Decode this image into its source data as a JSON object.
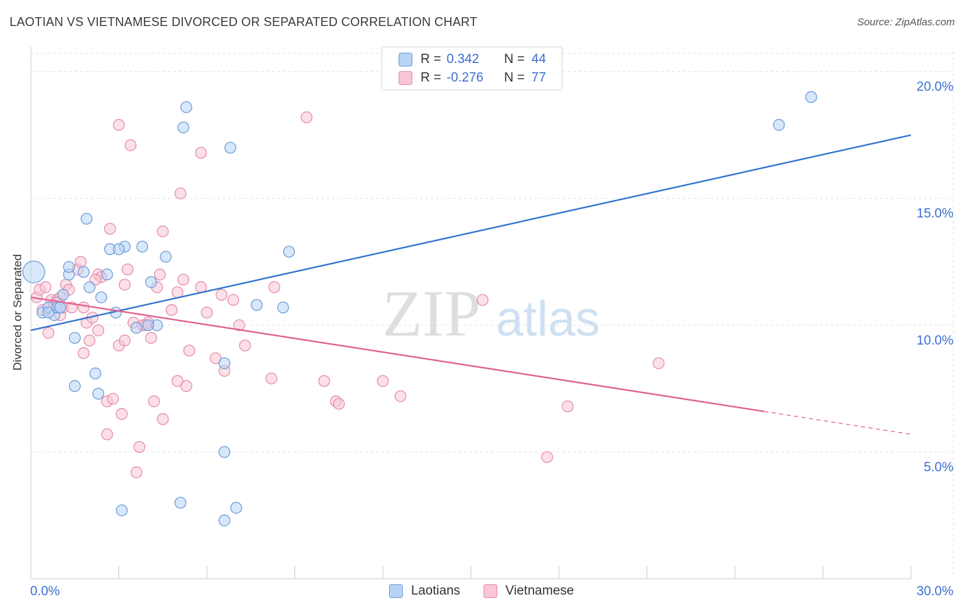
{
  "header": {
    "title": "LAOTIAN VS VIETNAMESE DIVORCED OR SEPARATED CORRELATION CHART",
    "source": "Source: ZipAtlas.com"
  },
  "legend": {
    "rows": [
      {
        "r_label": "R =",
        "r_value": "0.342",
        "n_label": "N =",
        "n_value": "44"
      },
      {
        "r_label": "R =",
        "r_value": "-0.276",
        "n_label": "N =",
        "n_value": "77"
      }
    ]
  },
  "bottom_legend": {
    "items": [
      {
        "label": "Laotians"
      },
      {
        "label": "Vietnamese"
      }
    ]
  },
  "colors": {
    "laotian_fill": "#b8d3f5",
    "laotian_stroke": "#6a9bd8",
    "laotian_line": "#2f73cf",
    "vietnamese_fill": "#f8c6d6",
    "vietnamese_stroke": "#e58aa8",
    "vietnamese_line": "#e0608e",
    "axis_text": "#3a6fd0",
    "grid": "#e2e2e2"
  },
  "watermark": {
    "zip": "ZIP",
    "atlas": "atlas"
  },
  "chart_data": {
    "type": "scatter",
    "title": "LAOTIAN VS VIETNAMESE DIVORCED OR SEPARATED CORRELATION CHART",
    "xlabel": "",
    "ylabel": "Divorced or Separated",
    "xlim": [
      0,
      30
    ],
    "ylim": [
      0,
      20.8
    ],
    "x_tick_labels": [
      {
        "value": 0,
        "label": "0.0%"
      },
      {
        "value": 30,
        "label": "30.0%"
      }
    ],
    "y_tick_labels": [
      {
        "value": 5,
        "label": "5.0%"
      },
      {
        "value": 10,
        "label": "10.0%"
      },
      {
        "value": 15,
        "label": "15.0%"
      },
      {
        "value": 20,
        "label": "20.0%"
      }
    ],
    "grid": true,
    "legend_position": "top-center",
    "series": [
      {
        "name": "Laotians",
        "r": 0.342,
        "n": 44,
        "trend": {
          "x": [
            0,
            30
          ],
          "y": [
            9.8,
            17.5
          ],
          "dashed_from": null
        },
        "points": [
          [
            0.1,
            12.1
          ],
          [
            0.4,
            10.5
          ],
          [
            0.6,
            10.7
          ],
          [
            0.8,
            10.4
          ],
          [
            0.9,
            10.7
          ],
          [
            1.0,
            10.7
          ],
          [
            1.1,
            11.2
          ],
          [
            1.3,
            12.0
          ],
          [
            1.3,
            12.3
          ],
          [
            1.5,
            9.5
          ],
          [
            1.8,
            12.1
          ],
          [
            1.9,
            14.2
          ],
          [
            2.0,
            11.5
          ],
          [
            2.2,
            8.1
          ],
          [
            2.3,
            7.3
          ],
          [
            2.4,
            11.1
          ],
          [
            2.6,
            12.0
          ],
          [
            2.7,
            13.0
          ],
          [
            2.9,
            10.5
          ],
          [
            3.1,
            2.7
          ],
          [
            3.2,
            13.1
          ],
          [
            3.6,
            9.9
          ],
          [
            3.8,
            13.1
          ],
          [
            4.1,
            11.7
          ],
          [
            4.3,
            10.0
          ],
          [
            4.6,
            12.7
          ],
          [
            5.1,
            3.0
          ],
          [
            5.2,
            17.8
          ],
          [
            5.3,
            18.6
          ],
          [
            6.6,
            8.5
          ],
          [
            6.6,
            5.0
          ],
          [
            6.6,
            2.3
          ],
          [
            6.8,
            17.0
          ],
          [
            7.0,
            2.8
          ],
          [
            7.7,
            10.8
          ],
          [
            8.6,
            10.7
          ],
          [
            8.8,
            12.9
          ],
          [
            25.5,
            17.9
          ],
          [
            26.6,
            19.0
          ],
          [
            1.5,
            7.6
          ],
          [
            0.6,
            10.5
          ],
          [
            3.0,
            13.0
          ],
          [
            4.0,
            10.0
          ],
          [
            1.0,
            10.7
          ]
        ]
      },
      {
        "name": "Vietnamese",
        "r": -0.276,
        "n": 77,
        "trend": {
          "x": [
            0,
            30
          ],
          "y": [
            11.1,
            5.7
          ],
          "dashed_from": 25.0
        },
        "points": [
          [
            0.2,
            11.1
          ],
          [
            0.3,
            11.4
          ],
          [
            0.4,
            10.6
          ],
          [
            0.5,
            11.5
          ],
          [
            0.6,
            9.7
          ],
          [
            0.7,
            11.0
          ],
          [
            0.8,
            10.8
          ],
          [
            0.9,
            11.0
          ],
          [
            1.0,
            10.4
          ],
          [
            1.1,
            10.7
          ],
          [
            1.2,
            11.6
          ],
          [
            1.3,
            11.4
          ],
          [
            1.4,
            10.7
          ],
          [
            1.6,
            12.2
          ],
          [
            1.7,
            12.5
          ],
          [
            1.8,
            10.7
          ],
          [
            1.8,
            8.9
          ],
          [
            1.9,
            10.1
          ],
          [
            2.0,
            9.4
          ],
          [
            2.1,
            10.3
          ],
          [
            2.3,
            12.0
          ],
          [
            2.3,
            9.8
          ],
          [
            2.4,
            11.9
          ],
          [
            2.6,
            7.0
          ],
          [
            2.6,
            5.7
          ],
          [
            2.7,
            13.8
          ],
          [
            2.8,
            7.1
          ],
          [
            3.0,
            17.9
          ],
          [
            3.0,
            9.2
          ],
          [
            3.1,
            6.5
          ],
          [
            3.2,
            9.4
          ],
          [
            3.2,
            11.6
          ],
          [
            3.3,
            12.2
          ],
          [
            3.4,
            17.1
          ],
          [
            3.5,
            10.1
          ],
          [
            3.6,
            4.2
          ],
          [
            3.7,
            5.2
          ],
          [
            3.8,
            10.0
          ],
          [
            4.0,
            10.1
          ],
          [
            4.1,
            9.5
          ],
          [
            4.2,
            7.0
          ],
          [
            4.3,
            11.5
          ],
          [
            4.4,
            12.0
          ],
          [
            4.5,
            6.3
          ],
          [
            4.5,
            13.7
          ],
          [
            4.8,
            10.6
          ],
          [
            5.0,
            7.8
          ],
          [
            5.0,
            11.3
          ],
          [
            5.1,
            15.2
          ],
          [
            5.2,
            11.8
          ],
          [
            5.3,
            7.6
          ],
          [
            5.4,
            9.0
          ],
          [
            5.8,
            16.8
          ],
          [
            5.8,
            11.5
          ],
          [
            6.0,
            10.5
          ],
          [
            6.3,
            8.7
          ],
          [
            6.5,
            11.2
          ],
          [
            6.6,
            8.2
          ],
          [
            6.9,
            11.0
          ],
          [
            7.1,
            10.0
          ],
          [
            7.3,
            9.2
          ],
          [
            8.2,
            7.9
          ],
          [
            8.3,
            11.5
          ],
          [
            9.4,
            18.2
          ],
          [
            10.0,
            7.8
          ],
          [
            10.4,
            7.0
          ],
          [
            10.5,
            6.9
          ],
          [
            12.0,
            7.8
          ],
          [
            12.6,
            7.2
          ],
          [
            15.4,
            11.0
          ],
          [
            17.6,
            4.8
          ],
          [
            18.3,
            6.8
          ],
          [
            21.4,
            8.5
          ],
          [
            1.0,
            11.1
          ],
          [
            0.9,
            10.9
          ],
          [
            2.2,
            11.8
          ],
          [
            3.9,
            10.0
          ]
        ]
      }
    ]
  }
}
